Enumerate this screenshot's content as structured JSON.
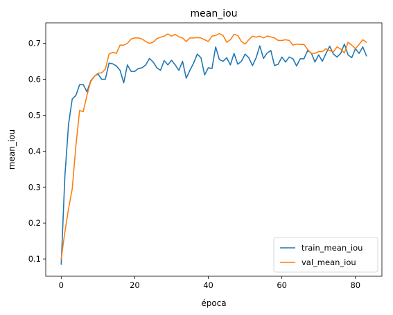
{
  "chart_data": {
    "type": "line",
    "title": "mean_iou",
    "xlabel": "época",
    "ylabel": "mean_iou",
    "xlim": [
      -4.2,
      87.2
    ],
    "ylim": [
      0.052,
      0.757
    ],
    "xticks": [
      0,
      20,
      40,
      60,
      80
    ],
    "yticks": [
      0.1,
      0.2,
      0.3,
      0.4,
      0.5,
      0.6,
      0.7
    ],
    "ytick_labels": [
      "0.1",
      "0.2",
      "0.3",
      "0.4",
      "0.5",
      "0.6",
      "0.7"
    ],
    "grid": false,
    "legend_position": "lower right",
    "series": [
      {
        "name": "train_mean_iou",
        "color": "#1f77b4",
        "values": [
          0.085,
          0.33,
          0.475,
          0.545,
          0.555,
          0.585,
          0.585,
          0.565,
          0.595,
          0.608,
          0.615,
          0.6,
          0.6,
          0.645,
          0.643,
          0.637,
          0.625,
          0.59,
          0.64,
          0.622,
          0.622,
          0.63,
          0.632,
          0.64,
          0.658,
          0.648,
          0.632,
          0.625,
          0.652,
          0.64,
          0.653,
          0.64,
          0.625,
          0.65,
          0.603,
          0.625,
          0.645,
          0.67,
          0.66,
          0.612,
          0.632,
          0.63,
          0.69,
          0.655,
          0.65,
          0.66,
          0.64,
          0.672,
          0.642,
          0.65,
          0.67,
          0.66,
          0.638,
          0.66,
          0.693,
          0.658,
          0.673,
          0.68,
          0.638,
          0.642,
          0.662,
          0.648,
          0.662,
          0.657,
          0.637,
          0.657,
          0.657,
          0.68,
          0.673,
          0.648,
          0.668,
          0.65,
          0.672,
          0.692,
          0.67,
          0.662,
          0.672,
          0.698,
          0.668,
          0.66,
          0.685,
          0.672,
          0.69,
          0.665
        ]
      },
      {
        "name": "val_mean_iou",
        "color": "#ff7f0e",
        "values": [
          0.1,
          0.175,
          0.24,
          0.295,
          0.415,
          0.513,
          0.51,
          0.555,
          0.593,
          0.608,
          0.617,
          0.618,
          0.628,
          0.67,
          0.675,
          0.672,
          0.695,
          0.695,
          0.7,
          0.712,
          0.715,
          0.715,
          0.712,
          0.705,
          0.7,
          0.703,
          0.713,
          0.717,
          0.72,
          0.726,
          0.72,
          0.725,
          0.718,
          0.715,
          0.705,
          0.715,
          0.715,
          0.716,
          0.715,
          0.71,
          0.705,
          0.72,
          0.722,
          0.727,
          0.722,
          0.703,
          0.71,
          0.725,
          0.722,
          0.705,
          0.698,
          0.71,
          0.72,
          0.717,
          0.72,
          0.715,
          0.72,
          0.718,
          0.715,
          0.708,
          0.708,
          0.71,
          0.708,
          0.695,
          0.698,
          0.697,
          0.697,
          0.683,
          0.672,
          0.672,
          0.677,
          0.677,
          0.685,
          0.68,
          0.676,
          0.69,
          0.684,
          0.673,
          0.703,
          0.695,
          0.685,
          0.697,
          0.71,
          0.703
        ]
      }
    ]
  }
}
